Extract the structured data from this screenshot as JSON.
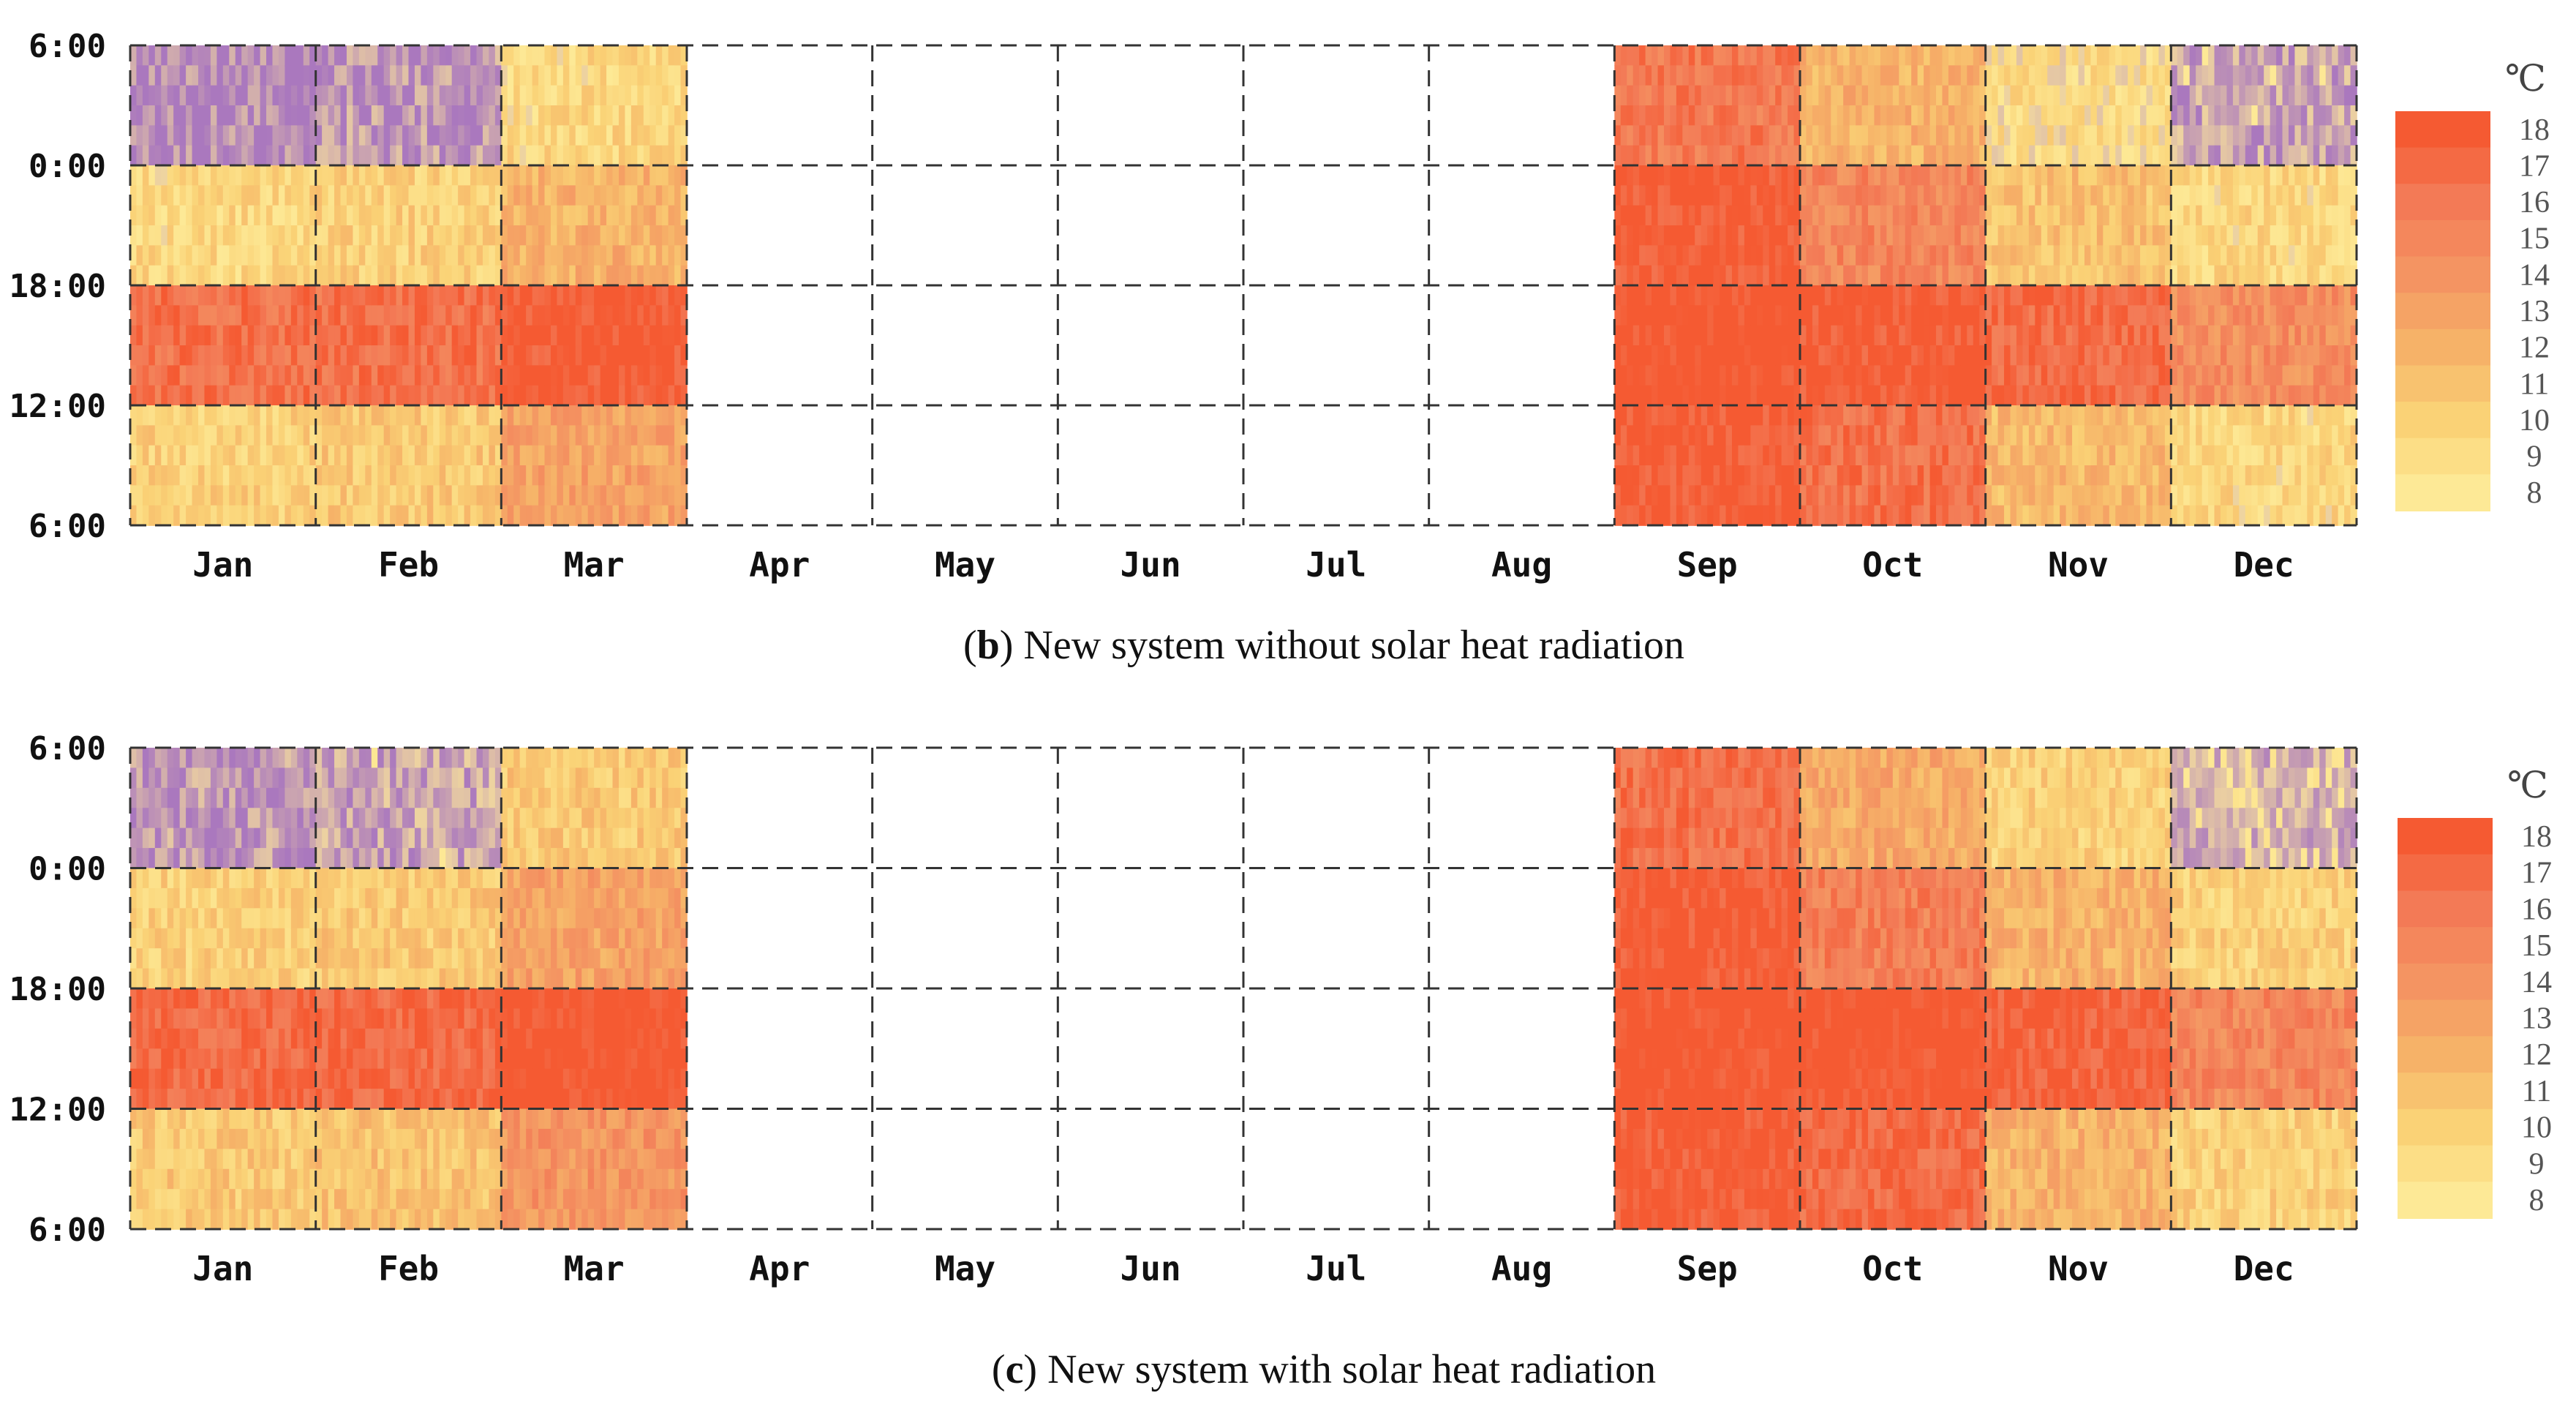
{
  "chart_data": [
    {
      "type": "heatmap",
      "panel_label": "b",
      "caption": "New system without solar heat radiation",
      "y_tick_labels": [
        "6:00",
        "0:00",
        "18:00",
        "12:00",
        "6:00"
      ],
      "months": [
        "Jan",
        "Feb",
        "Mar",
        "Apr",
        "May",
        "Jun",
        "Jul",
        "Aug",
        "Sep",
        "Oct",
        "Nov",
        "Dec"
      ],
      "months_with_data": [
        "Jan",
        "Feb",
        "Mar",
        "Sep",
        "Oct",
        "Nov",
        "Dec"
      ],
      "colorbar": {
        "unit": "℃",
        "labels": [
          18,
          17,
          16,
          15,
          14,
          13,
          12,
          11,
          10,
          9,
          8
        ],
        "range": [
          8,
          18
        ]
      },
      "daily_profile_by_month": {
        "Jan": {
          "midnight_to_morning": 5.5,
          "evening": 9.5,
          "afternoon": 16.5,
          "morning": 10.0
        },
        "Feb": {
          "midnight_to_morning": 6.0,
          "evening": 10.0,
          "afternoon": 16.5,
          "morning": 10.5
        },
        "Mar": {
          "midnight_to_morning": 9.5,
          "evening": 12.0,
          "afternoon": 18.0,
          "morning": 13.0
        },
        "Sep": {
          "midnight_to_morning": 16.0,
          "evening": 18.0,
          "afternoon": 18.5,
          "morning": 18.0
        },
        "Oct": {
          "midnight_to_morning": 12.0,
          "evening": 15.0,
          "afternoon": 18.0,
          "morning": 16.5
        },
        "Nov": {
          "midnight_to_morning": 9.0,
          "evening": 11.0,
          "afternoon": 17.0,
          "morning": 11.5
        },
        "Dec": {
          "midnight_to_morning": 6.5,
          "evening": 9.5,
          "afternoon": 14.5,
          "morning": 9.5
        }
      }
    },
    {
      "type": "heatmap",
      "panel_label": "c",
      "caption": "New system with solar heat radiation",
      "y_tick_labels": [
        "6:00",
        "0:00",
        "18:00",
        "12:00",
        "6:00"
      ],
      "months": [
        "Jan",
        "Feb",
        "Mar",
        "Apr",
        "May",
        "Jun",
        "Jul",
        "Aug",
        "Sep",
        "Oct",
        "Nov",
        "Dec"
      ],
      "months_with_data": [
        "Jan",
        "Feb",
        "Mar",
        "Sep",
        "Oct",
        "Nov",
        "Dec"
      ],
      "colorbar": {
        "unit": "℃",
        "labels": [
          18,
          17,
          16,
          15,
          14,
          13,
          12,
          11,
          10,
          9,
          8
        ],
        "range": [
          8,
          18
        ]
      },
      "daily_profile_by_month": {
        "Jan": {
          "midnight_to_morning": 6.0,
          "evening": 10.0,
          "afternoon": 17.0,
          "morning": 10.5
        },
        "Feb": {
          "midnight_to_morning": 6.5,
          "evening": 10.5,
          "afternoon": 17.0,
          "morning": 11.0
        },
        "Mar": {
          "midnight_to_morning": 10.5,
          "evening": 13.0,
          "afternoon": 18.5,
          "morning": 14.0
        },
        "Sep": {
          "midnight_to_morning": 16.5,
          "evening": 18.0,
          "afternoon": 18.5,
          "morning": 18.0
        },
        "Oct": {
          "midnight_to_morning": 12.5,
          "evening": 15.5,
          "afternoon": 18.5,
          "morning": 17.0
        },
        "Nov": {
          "midnight_to_morning": 10.0,
          "evening": 12.0,
          "afternoon": 17.5,
          "morning": 12.0
        },
        "Dec": {
          "midnight_to_morning": 7.0,
          "evening": 10.0,
          "afternoon": 15.0,
          "morning": 10.0
        }
      }
    }
  ]
}
